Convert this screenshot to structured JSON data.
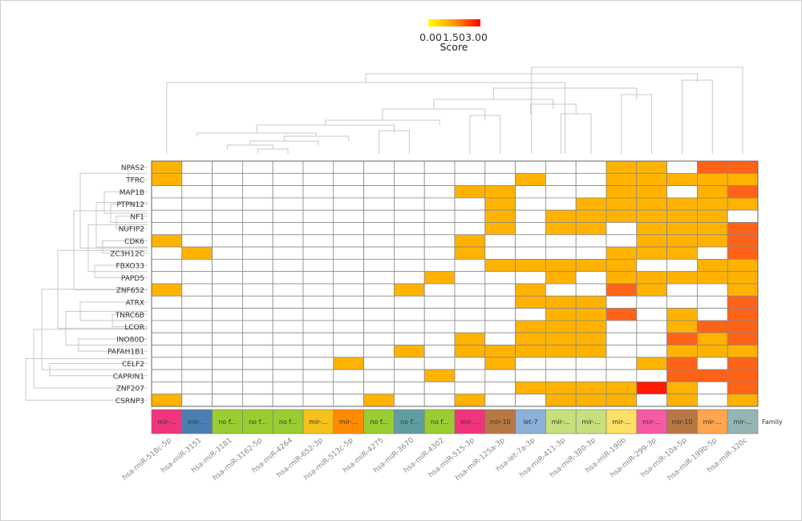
{
  "chart_data": {
    "type": "heatmap",
    "title": "",
    "legend": {
      "label": "Score",
      "ticks": [
        "0.00",
        "1.50",
        "3.00"
      ],
      "colors": [
        "#ffff00",
        "#ff9900",
        "#ff0000"
      ]
    },
    "cell_colors": {
      "0": "#ffffff",
      "1": "#ffb300",
      "2": "#ff6318",
      "3": "#ff1a00"
    },
    "rows": [
      "NPAS2",
      "TFRC",
      "MAP1B",
      "PTPN12",
      "NF1",
      "NUFIP2",
      "CDK6",
      "ZC3H12C",
      "FBXO33",
      "PAPD5",
      "ZNF652",
      "ATRX",
      "TNRC6B",
      "LCOR",
      "INO80D",
      "PAFAH1B1",
      "CELF2",
      "CAPRIN1",
      "ZNF207",
      "CSRNP3"
    ],
    "columns": [
      "hsa-miR-518c-5p",
      "hsa-miR-3151",
      "hsa-miR-3181",
      "hsa-miR-3162-5p",
      "hsa-miR-4264",
      "hsa-miR-652-3p",
      "hsa-miR-513c-5p",
      "hsa-miR-4275",
      "hsa-miR-3670",
      "hsa-miR-4302",
      "hsa-miR-515-3p",
      "hsa-miR-125a-3p",
      "hsa-let-7a-3p",
      "hsa-miR-411-3p",
      "hsa-miR-380-3p",
      "hsa-miR-190b",
      "hsa-miR-299-3p",
      "hsa-miR-10a-5p",
      "hsa-miR-199b-5p",
      "hsa-miR-320c"
    ],
    "values": [
      [
        1,
        0,
        0,
        0,
        0,
        0,
        0,
        0,
        0,
        0,
        0,
        0,
        0,
        0,
        0,
        1,
        1,
        0,
        2,
        2
      ],
      [
        1,
        0,
        0,
        0,
        0,
        0,
        0,
        0,
        0,
        0,
        0,
        0,
        1,
        0,
        0,
        1,
        1,
        1,
        1,
        1
      ],
      [
        0,
        0,
        0,
        0,
        0,
        0,
        0,
        0,
        0,
        0,
        1,
        1,
        0,
        0,
        0,
        1,
        1,
        0,
        1,
        2
      ],
      [
        0,
        0,
        0,
        0,
        0,
        0,
        0,
        0,
        0,
        0,
        0,
        1,
        0,
        0,
        1,
        1,
        1,
        1,
        1,
        1
      ],
      [
        0,
        0,
        0,
        0,
        0,
        0,
        0,
        0,
        0,
        0,
        0,
        1,
        0,
        1,
        1,
        1,
        1,
        1,
        1,
        0
      ],
      [
        0,
        0,
        0,
        0,
        0,
        0,
        0,
        0,
        0,
        0,
        0,
        1,
        0,
        1,
        1,
        0,
        1,
        1,
        1,
        2
      ],
      [
        1,
        0,
        0,
        0,
        0,
        0,
        0,
        0,
        0,
        0,
        1,
        0,
        0,
        0,
        0,
        0,
        1,
        1,
        1,
        2
      ],
      [
        0,
        1,
        0,
        0,
        0,
        0,
        0,
        0,
        0,
        0,
        1,
        0,
        0,
        0,
        0,
        1,
        1,
        1,
        0,
        2
      ],
      [
        0,
        0,
        0,
        0,
        0,
        0,
        0,
        0,
        0,
        0,
        0,
        1,
        1,
        1,
        1,
        1,
        0,
        0,
        1,
        1
      ],
      [
        0,
        0,
        0,
        0,
        0,
        0,
        0,
        0,
        0,
        1,
        0,
        0,
        0,
        1,
        0,
        1,
        1,
        1,
        1,
        1
      ],
      [
        1,
        0,
        0,
        0,
        0,
        0,
        0,
        0,
        1,
        0,
        0,
        0,
        1,
        0,
        0,
        2,
        1,
        0,
        0,
        1
      ],
      [
        0,
        0,
        0,
        0,
        0,
        0,
        0,
        0,
        0,
        0,
        0,
        0,
        1,
        1,
        1,
        0,
        0,
        0,
        0,
        2
      ],
      [
        0,
        0,
        0,
        0,
        0,
        0,
        0,
        0,
        0,
        0,
        0,
        0,
        0,
        1,
        1,
        2,
        0,
        1,
        0,
        2
      ],
      [
        0,
        0,
        0,
        0,
        0,
        0,
        0,
        0,
        0,
        0,
        0,
        0,
        1,
        1,
        1,
        0,
        0,
        1,
        2,
        2
      ],
      [
        0,
        0,
        0,
        0,
        0,
        0,
        0,
        0,
        0,
        0,
        1,
        0,
        1,
        1,
        1,
        0,
        0,
        2,
        1,
        2
      ],
      [
        0,
        0,
        0,
        0,
        0,
        0,
        0,
        0,
        1,
        0,
        1,
        1,
        1,
        1,
        1,
        0,
        0,
        1,
        1,
        1
      ],
      [
        0,
        0,
        0,
        0,
        0,
        0,
        1,
        0,
        0,
        0,
        0,
        1,
        0,
        0,
        0,
        0,
        1,
        2,
        0,
        2
      ],
      [
        0,
        0,
        0,
        0,
        0,
        0,
        0,
        0,
        0,
        1,
        0,
        0,
        0,
        0,
        0,
        0,
        0,
        2,
        2,
        2
      ],
      [
        0,
        0,
        0,
        0,
        0,
        0,
        0,
        0,
        0,
        0,
        0,
        0,
        1,
        1,
        1,
        1,
        3,
        1,
        0,
        2
      ],
      [
        1,
        0,
        0,
        0,
        0,
        0,
        0,
        1,
        0,
        0,
        1,
        0,
        0,
        1,
        1,
        1,
        0,
        1,
        0,
        1
      ]
    ],
    "family_label": "Family",
    "families": [
      {
        "label": "mir-...",
        "color": "#f0357d"
      },
      {
        "label": "mir-...",
        "color": "#4b7fb3"
      },
      {
        "label": "no f...",
        "color": "#9acd32"
      },
      {
        "label": "no f...",
        "color": "#9acd32"
      },
      {
        "label": "no f...",
        "color": "#9acd32"
      },
      {
        "label": "mir-...",
        "color": "#f7c11b"
      },
      {
        "label": "mir-...",
        "color": "#ff8c00"
      },
      {
        "label": "no f...",
        "color": "#9acd32"
      },
      {
        "label": "no f...",
        "color": "#5f9ea0"
      },
      {
        "label": "no f...",
        "color": "#9acd32"
      },
      {
        "label": "mir-...",
        "color": "#f0357d"
      },
      {
        "label": "mir-10",
        "color": "#b87844"
      },
      {
        "label": "let-7",
        "color": "#8db0d9"
      },
      {
        "label": "mir-...",
        "color": "#c6e07e"
      },
      {
        "label": "mir-...",
        "color": "#c6e07e"
      },
      {
        "label": "mir-...",
        "color": "#ffe066"
      },
      {
        "label": "mir-...",
        "color": "#f65aa5"
      },
      {
        "label": "mir-10",
        "color": "#b87844"
      },
      {
        "label": "mir-...",
        "color": "#ffa54f"
      },
      {
        "label": "mir-...",
        "color": "#95b5b5"
      }
    ],
    "grid": true,
    "legend_placement": "top-center"
  }
}
